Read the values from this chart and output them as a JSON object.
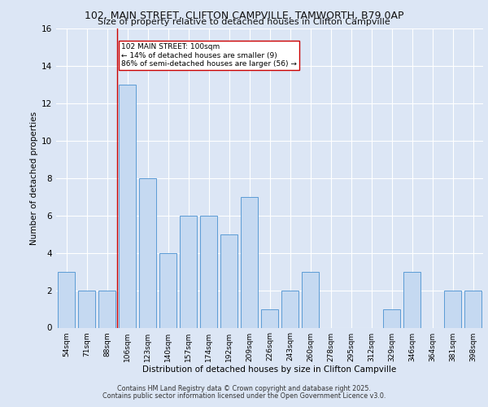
{
  "title1": "102, MAIN STREET, CLIFTON CAMPVILLE, TAMWORTH, B79 0AP",
  "title2": "Size of property relative to detached houses in Clifton Campville",
  "xlabel": "Distribution of detached houses by size in Clifton Campville",
  "ylabel": "Number of detached properties",
  "categories": [
    "54sqm",
    "71sqm",
    "88sqm",
    "106sqm",
    "123sqm",
    "140sqm",
    "157sqm",
    "174sqm",
    "192sqm",
    "209sqm",
    "226sqm",
    "243sqm",
    "260sqm",
    "278sqm",
    "295sqm",
    "312sqm",
    "329sqm",
    "346sqm",
    "364sqm",
    "381sqm",
    "398sqm"
  ],
  "values": [
    3,
    2,
    2,
    13,
    8,
    4,
    6,
    6,
    5,
    7,
    1,
    2,
    3,
    0,
    0,
    0,
    1,
    3,
    0,
    2,
    2
  ],
  "bar_color": "#c5d9f1",
  "bar_edge_color": "#5b9bd5",
  "red_line_index": 3,
  "annotation_text": "102 MAIN STREET: 100sqm\n← 14% of detached houses are smaller (9)\n86% of semi-detached houses are larger (56) →",
  "annotation_box_color": "#ffffff",
  "annotation_box_edge": "#cc0000",
  "ylim": [
    0,
    16
  ],
  "yticks": [
    0,
    2,
    4,
    6,
    8,
    10,
    12,
    14,
    16
  ],
  "footer1": "Contains HM Land Registry data © Crown copyright and database right 2025.",
  "footer2": "Contains public sector information licensed under the Open Government Licence v3.0.",
  "fig_bg_color": "#dce6f5",
  "plot_bg_color": "#dce6f5"
}
